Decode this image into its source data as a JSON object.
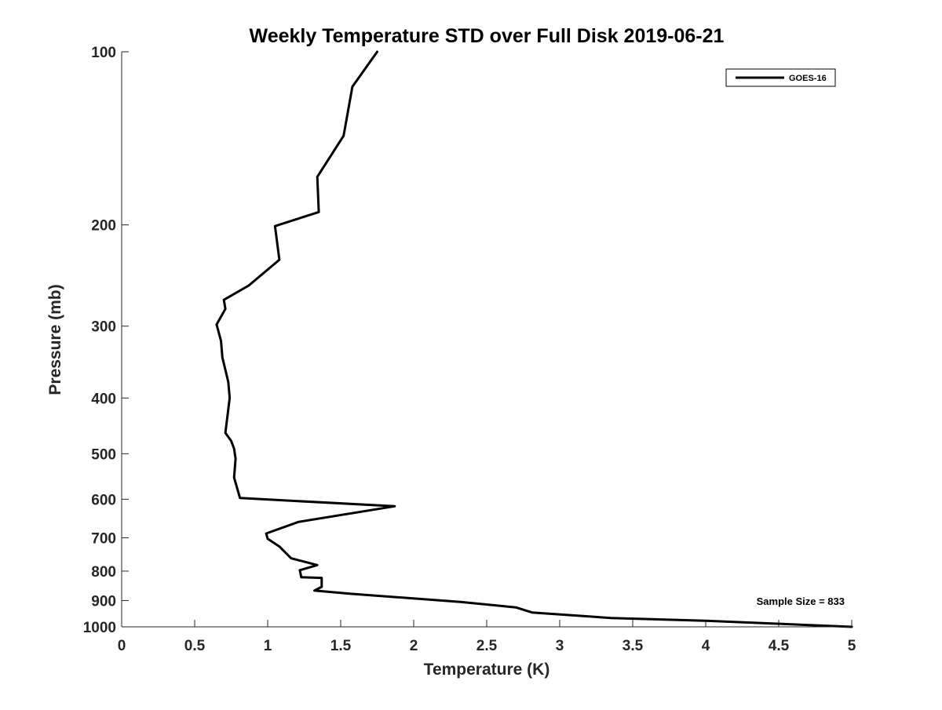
{
  "chart_data": {
    "type": "line",
    "title": "Weekly Temperature STD over Full Disk 2019-06-21",
    "xlabel": "Temperature (K)",
    "ylabel": "Pressure (mb)",
    "xlim": [
      0,
      5
    ],
    "ylim": [
      100,
      1000
    ],
    "y_scale": "log",
    "y_reversed": true,
    "grid": false,
    "legend_position": "top-right",
    "x_ticks": [
      0,
      0.5,
      1,
      1.5,
      2,
      2.5,
      3,
      3.5,
      4,
      4.5,
      5
    ],
    "x_tick_labels": [
      "0",
      "0.5",
      "1",
      "1.5",
      "2",
      "2.5",
      "3",
      "3.5",
      "4",
      "4.5",
      "5"
    ],
    "y_ticks": [
      100,
      200,
      300,
      400,
      500,
      600,
      700,
      800,
      900,
      1000
    ],
    "y_tick_labels": [
      "100",
      "200",
      "300",
      "400",
      "500",
      "600",
      "700",
      "800",
      "900",
      "1000"
    ],
    "series": [
      {
        "name": "GOES-16",
        "color": "#000000",
        "x": [
          1.75,
          1.58,
          1.52,
          1.34,
          1.35,
          1.05,
          1.08,
          0.87,
          0.7,
          0.71,
          0.65,
          0.68,
          0.69,
          0.73,
          0.74,
          0.71,
          0.75,
          0.77,
          0.78,
          0.77,
          0.81,
          1.87,
          1.21,
          0.99,
          1.0,
          1.08,
          1.16,
          1.34,
          1.22,
          1.23,
          1.37,
          1.37,
          1.32,
          1.57,
          2.32,
          2.7,
          2.81,
          3.35,
          4.0,
          5.0
        ],
        "y": [
          100,
          115,
          140,
          165,
          190,
          201,
          230,
          255,
          270,
          280,
          298,
          318,
          340,
          375,
          400,
          460,
          475,
          490,
          510,
          550,
          597,
          617,
          657,
          688,
          703,
          725,
          760,
          781,
          797,
          820,
          822,
          852,
          865,
          876,
          905,
          925,
          944,
          965,
          976,
          1000
        ]
      }
    ],
    "annotations": [
      {
        "text": "Sample Size = 833",
        "position": "bottom-right"
      }
    ]
  }
}
